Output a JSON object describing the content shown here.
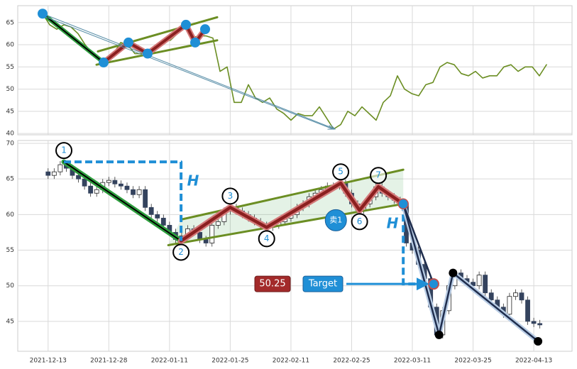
{
  "chart_data": [
    {
      "type": "line",
      "x": [
        0,
        1,
        2,
        3,
        4,
        5,
        6,
        7,
        8,
        9,
        10,
        11,
        12,
        13,
        14,
        15,
        16,
        17,
        18,
        19,
        20,
        21,
        22,
        23,
        24,
        25,
        26,
        27,
        28,
        29,
        30,
        31,
        32,
        33,
        34,
        35,
        36,
        37,
        38,
        39,
        40,
        41,
        42,
        43,
        44,
        45,
        46,
        47,
        48,
        49,
        50,
        51,
        52,
        53,
        54,
        55,
        56,
        57,
        58,
        59,
        60,
        61,
        62,
        63,
        64,
        65,
        66,
        67,
        68,
        69,
        70,
        71
      ],
      "values": [
        67,
        64.5,
        63.5,
        64.5,
        64,
        62.5,
        60,
        58,
        56.5,
        56,
        58,
        60.5,
        60,
        58,
        58,
        58.5,
        60,
        61,
        61,
        62.5,
        64,
        61.5,
        62,
        62,
        61.5,
        54,
        55,
        47,
        47,
        51,
        48,
        47,
        48,
        45.5,
        44.5,
        43,
        44.5,
        44,
        44,
        46,
        43.5,
        41,
        42,
        45,
        44,
        46,
        44.5,
        43,
        47,
        48.5,
        53,
        50,
        49,
        48.5,
        51,
        51.5,
        55,
        56,
        55.5,
        53.5,
        53,
        54,
        52.5,
        53,
        53,
        55,
        55.5,
        54,
        55,
        55,
        53,
        55.5
      ],
      "color": "#6b8e23",
      "xlim": [
        -3.5,
        74.6
      ],
      "ylim": [
        39.7,
        68.8
      ],
      "yticks": [
        40,
        45,
        50,
        55,
        60,
        65
      ],
      "grid": true,
      "trend_line": {
        "x": [
          0,
          8.6
        ],
        "values": [
          67,
          56
        ]
      },
      "zigzag": {
        "x": [
          8.6,
          12.1,
          14.8,
          20.2,
          21.5,
          22.9
        ],
        "values": [
          56,
          60.5,
          58,
          64.5,
          60.5,
          63.5
        ]
      },
      "pivots": {
        "x": [
          0,
          8.6,
          12.1,
          14.8,
          20.2,
          21.5,
          22.9
        ],
        "values": [
          67,
          56,
          60.5,
          58,
          64.5,
          60.5,
          63.5
        ]
      },
      "channel_upper": {
        "x": [
          7.8,
          24.6
        ],
        "values": [
          58.5,
          66.2
        ]
      },
      "channel_lower": {
        "x": [
          7.6,
          24.6
        ],
        "values": [
          55.5,
          61
        ]
      },
      "projection": {
        "x": [
          0,
          41.2
        ],
        "values": [
          67,
          41
        ]
      }
    },
    {
      "type": "candlestick",
      "x": [
        0,
        1,
        2,
        3,
        4,
        5,
        6,
        7,
        8,
        9,
        10,
        11,
        12,
        13,
        14,
        15,
        16,
        17,
        18,
        19,
        20,
        21,
        22,
        23,
        24,
        25,
        26,
        27,
        28,
        29,
        30,
        31,
        32,
        33,
        34,
        35,
        36,
        37,
        38,
        39,
        40,
        41,
        42,
        43,
        44,
        45,
        46,
        47,
        48,
        49,
        50,
        51,
        52,
        53,
        54,
        55,
        56,
        57,
        58,
        59,
        60,
        61,
        62,
        63,
        64,
        65,
        66,
        67,
        68,
        69,
        70,
        71,
        72,
        73,
        74,
        75,
        76,
        77,
        78,
        79,
        80,
        81
      ],
      "open": [
        66,
        65.5,
        66,
        67,
        66.5,
        65.5,
        65,
        64,
        63,
        63.5,
        64.5,
        64.8,
        64.3,
        64,
        63.5,
        62.8,
        63.5,
        61,
        60,
        59.5,
        58.5,
        57.5,
        56.5,
        57,
        58,
        57.5,
        56.5,
        56,
        58.5,
        59,
        60.5,
        61,
        60.5,
        60,
        59.5,
        59,
        58.5,
        58.2,
        58.5,
        59,
        59.5,
        60,
        61,
        61.5,
        62.5,
        63,
        63.5,
        64,
        64,
        64.4,
        63,
        61.5,
        60.6,
        61.5,
        62.5,
        63.9,
        63,
        62.5,
        62,
        61.5,
        56,
        55,
        53,
        51,
        47,
        43.1,
        46.5,
        50,
        51.8,
        51,
        50.5,
        50,
        51.5,
        49,
        48,
        47,
        46,
        48.5,
        49,
        48,
        45,
        44.7
      ],
      "high": [
        66.5,
        66.5,
        67.5,
        67.5,
        67,
        66,
        65.5,
        64.5,
        64,
        65,
        65.3,
        65.3,
        64.8,
        64.5,
        64,
        64,
        64,
        61.5,
        60.5,
        60,
        59,
        58,
        57.5,
        58.5,
        58.5,
        58,
        57,
        59,
        59.5,
        61,
        61.5,
        61.5,
        61,
        60.5,
        60,
        59.5,
        59,
        59,
        59.5,
        60,
        60.5,
        61.5,
        62,
        63,
        63.5,
        64,
        64.5,
        64.5,
        64.9,
        64.9,
        63.5,
        62,
        62,
        63,
        64.4,
        64.4,
        63.5,
        63,
        62.5,
        62,
        56.5,
        55.5,
        53.5,
        51.5,
        47.5,
        47,
        50.5,
        52.3,
        52.3,
        51.5,
        51,
        52,
        52,
        49.5,
        48.5,
        47.5,
        49,
        49.5,
        49.5,
        48.5,
        45.5,
        45.2
      ],
      "low": [
        65,
        65,
        65.5,
        66,
        65,
        64.5,
        63.5,
        62.5,
        62.5,
        63,
        64,
        63.8,
        63.5,
        63,
        62.3,
        62.3,
        60.5,
        59.5,
        59,
        58,
        57,
        56,
        56,
        56.5,
        57,
        56,
        55.5,
        55.5,
        58,
        58.5,
        60,
        60,
        59.5,
        59,
        58.5,
        58,
        57.7,
        57.7,
        58,
        58.5,
        59,
        59.5,
        60.5,
        61,
        62,
        62.5,
        63,
        63.5,
        63.5,
        62.5,
        61,
        60.1,
        60.1,
        61,
        62,
        62.5,
        62,
        61.5,
        61,
        55.5,
        54.5,
        52.5,
        50.5,
        46.5,
        42.6,
        42.6,
        46,
        49.5,
        50.5,
        50,
        49.5,
        49.5,
        48.5,
        47.5,
        46.5,
        45.5,
        45.5,
        48,
        47.5,
        44.5,
        44.2,
        44
      ],
      "close": [
        65.5,
        66,
        67,
        66.5,
        65.5,
        65,
        64,
        63,
        63.5,
        64.5,
        64.8,
        64.3,
        64,
        63.5,
        62.8,
        63.5,
        61,
        60,
        59.5,
        58.5,
        57.5,
        56.5,
        57,
        58,
        57.5,
        56.5,
        56,
        58.5,
        59,
        60.5,
        61,
        60.5,
        60,
        59.5,
        59,
        58.5,
        58.2,
        58.5,
        59,
        59.5,
        60,
        61,
        61.5,
        62.5,
        63,
        63.5,
        64,
        64,
        64.4,
        63,
        61.5,
        60.6,
        61.5,
        62.5,
        63.9,
        63,
        62.5,
        62,
        61.5,
        56,
        55,
        53,
        51,
        47,
        43.1,
        46.5,
        50,
        51.8,
        51,
        50.5,
        50,
        51.5,
        49,
        48,
        47,
        46,
        48.5,
        49,
        48,
        45,
        44.7,
        44.5
      ],
      "up_color": "#ffffff",
      "down_color": "#34435e",
      "xlim": [
        -5,
        86.3
      ],
      "ylim": [
        40.8,
        70.4
      ],
      "xticks": [
        {
          "value": 0,
          "label": "2021-12-13"
        },
        {
          "value": 10,
          "label": "2021-12-28"
        },
        {
          "value": 20,
          "label": "2022-01-11"
        },
        {
          "value": 30,
          "label": "2022-01-25"
        },
        {
          "value": 40,
          "label": "2022-02-11"
        },
        {
          "value": 50,
          "label": "2022-02-25"
        },
        {
          "value": 60,
          "label": "2022-03-11"
        },
        {
          "value": 70,
          "label": "2022-03-25"
        },
        {
          "value": 80,
          "label": "2022-04-13"
        }
      ],
      "yticks": [
        45,
        50,
        55,
        60,
        65,
        70
      ],
      "grid": true,
      "down_trend": {
        "x": [
          2.6,
          21.9
        ],
        "values": [
          67.4,
          56.3
        ]
      },
      "zigzag": {
        "x": [
          21.9,
          30,
          36,
          48.2,
          51.3,
          54.4,
          58.5
        ],
        "values": [
          56.3,
          61,
          58.2,
          64.4,
          60.6,
          63.9,
          61.5
        ]
      },
      "pivot_labels": {
        "labels": [
          "1",
          "2",
          "3",
          "4",
          "5",
          "6",
          "7"
        ],
        "x": [
          2.6,
          21.9,
          30,
          36,
          48.2,
          51.3,
          54.4
        ],
        "values": [
          67.4,
          56.3,
          61,
          58.2,
          64.4,
          60.6,
          63.9
        ]
      },
      "channel_upper": {
        "x": [
          21.9,
          58.5
        ],
        "values": [
          59.3,
          66.3
        ]
      },
      "channel_lower": {
        "x": [
          19.8,
          58.5
        ],
        "values": [
          55.7,
          61.5
        ]
      },
      "measure_box": {
        "x": [
          2.6,
          21.9,
          21.9
        ],
        "values": [
          67.4,
          67.4,
          56.3
        ]
      },
      "measure_label": "H",
      "breakout": {
        "x": 58.5,
        "value": 61.5
      },
      "target": {
        "label": "Target",
        "price": 50.25,
        "x": 63.5
      },
      "forecast": {
        "x": [
          58.5,
          64.4,
          66.7,
          80.7
        ],
        "values": [
          61.5,
          43.1,
          51.8,
          42.2
        ]
      },
      "sell_signal": {
        "label": "卖1",
        "x": 47.4,
        "value": 59.2
      }
    }
  ]
}
